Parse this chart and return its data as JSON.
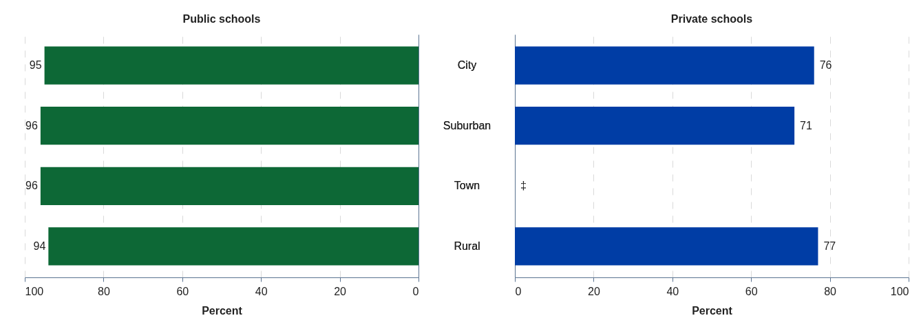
{
  "chart_data": [
    {
      "type": "bar",
      "orientation": "horizontal",
      "title": "Public schools",
      "xlabel": "Percent",
      "categories": [
        "City",
        "Suburban",
        "Town",
        "Rural"
      ],
      "values": [
        95,
        96,
        96,
        94
      ],
      "color": "#0d6836",
      "xlim": [
        100,
        0
      ],
      "xticks": [
        100,
        80,
        60,
        40,
        20,
        0
      ],
      "grid": "x",
      "data_labels": true
    },
    {
      "type": "bar",
      "orientation": "horizontal",
      "title": "Private schools",
      "xlabel": "Percent",
      "categories": [
        "City",
        "Suburban",
        "Town",
        "Rural"
      ],
      "values": [
        76,
        71,
        null,
        77
      ],
      "value_labels": [
        "76",
        "71",
        "‡",
        "77"
      ],
      "color": "#003da5",
      "xlim": [
        0,
        100
      ],
      "xticks": [
        0,
        20,
        40,
        60,
        80,
        100
      ],
      "grid": "x"
    }
  ]
}
